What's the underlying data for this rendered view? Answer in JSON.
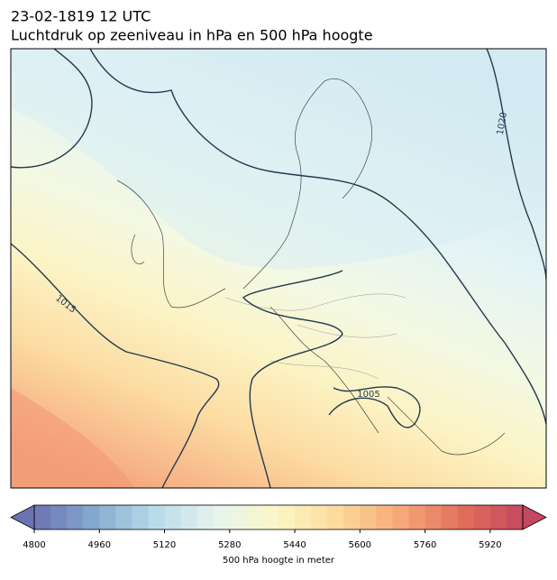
{
  "title": "23-02-1819 12 UTC",
  "subtitle": "Luchtdruk op zeeniveau in hPa en 500 hPa hoogte",
  "contour_labels": [
    {
      "text": "1020"
    },
    {
      "text": "1015"
    },
    {
      "text": "1005"
    }
  ],
  "colorbar": {
    "label": "500 hPa hoogte in meter",
    "lim": [
      4800,
      6000
    ],
    "step": 40,
    "ticks": [
      4800,
      4960,
      5120,
      5280,
      5440,
      5600,
      5760,
      5920
    ],
    "colors": [
      "#6c73b3",
      "#86abd0",
      "#b9dcea",
      "#e8f4ee",
      "#fbf6c4",
      "#fcd99a",
      "#f6a87a",
      "#e1705a",
      "#c4485f"
    ]
  }
}
